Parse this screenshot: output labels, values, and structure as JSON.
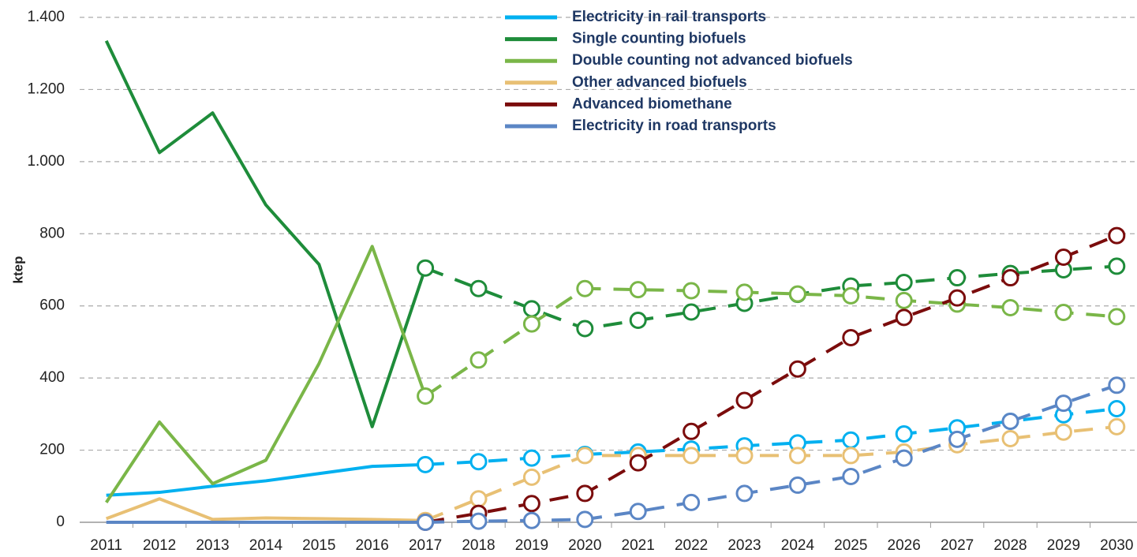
{
  "chart_data": {
    "type": "line",
    "ylabel": "ktep",
    "categories": [
      "2011",
      "2012",
      "2013",
      "2014",
      "2015",
      "2016",
      "2017",
      "2018",
      "2019",
      "2020",
      "2021",
      "2022",
      "2023",
      "2024",
      "2025",
      "2026",
      "2027",
      "2028",
      "2029",
      "2030"
    ],
    "dashed_from": "2017",
    "series": [
      {
        "name": "Electricity in rail transports",
        "color": "#00b0f0",
        "values": [
          75,
          83,
          100,
          115,
          135,
          155,
          160,
          168,
          178,
          188,
          195,
          203,
          212,
          220,
          228,
          245,
          262,
          280,
          298,
          315
        ]
      },
      {
        "name": "Single counting biofuels",
        "color": "#1e8c3a",
        "values": [
          1335,
          1025,
          1135,
          880,
          715,
          265,
          705,
          648,
          592,
          537,
          560,
          583,
          607,
          632,
          655,
          665,
          678,
          690,
          700,
          710
        ]
      },
      {
        "name": "Double counting not advanced biofuels",
        "color": "#7ab648",
        "values": [
          55,
          278,
          107,
          172,
          440,
          765,
          350,
          450,
          550,
          648,
          645,
          642,
          638,
          633,
          628,
          615,
          605,
          595,
          582,
          570
        ]
      },
      {
        "name": "Other advanced biofuels",
        "color": "#e8c074",
        "values": [
          10,
          65,
          8,
          12,
          10,
          8,
          5,
          65,
          125,
          185,
          185,
          185,
          185,
          185,
          185,
          195,
          215,
          232,
          250,
          265
        ]
      },
      {
        "name": "Advanced biomethane",
        "color": "#7b0c0c",
        "values": [
          null,
          null,
          null,
          null,
          null,
          null,
          0,
          25,
          52,
          80,
          165,
          252,
          338,
          425,
          512,
          568,
          622,
          678,
          735,
          795
        ]
      },
      {
        "name": "Electricity in road transports",
        "color": "#5b86c5",
        "values": [
          0,
          0,
          0,
          0,
          0,
          0,
          0,
          3,
          5,
          8,
          30,
          55,
          80,
          103,
          127,
          178,
          230,
          280,
          330,
          380
        ]
      }
    ],
    "ylim": [
      0,
      1400
    ],
    "yticks": [
      0,
      200,
      400,
      600,
      800,
      {
        "value": 1000,
        "label": "1.000"
      },
      {
        "value": 1200,
        "label": "1.200"
      },
      {
        "value": 1400,
        "label": "1.400"
      }
    ],
    "grid": true,
    "legend": "top"
  }
}
